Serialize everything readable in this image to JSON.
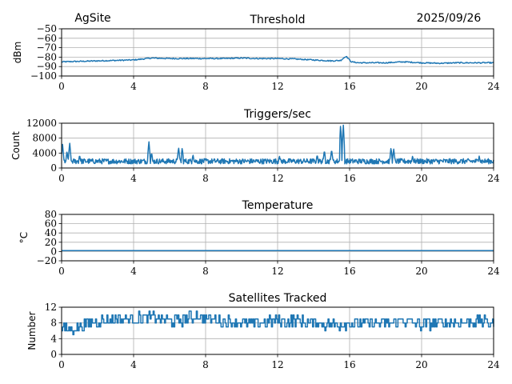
{
  "header": {
    "site": "AgSite",
    "date": "2025/09/26"
  },
  "colors": {
    "series": "#1f77b4",
    "grid": "#b0b0b0"
  },
  "chart_data": [
    {
      "type": "line",
      "title": "Threshold",
      "ylabel": "dBm",
      "xlim": [
        0,
        24
      ],
      "ylim": [
        -100,
        -50
      ],
      "xticks": [
        0,
        4,
        8,
        12,
        16,
        20,
        24
      ],
      "xtick_labels": [
        "0",
        "4",
        "8",
        "12",
        "16",
        "20",
        "24"
      ],
      "yticks": [
        -100,
        -90,
        -80,
        -70,
        -60,
        -50
      ],
      "ytick_labels": [
        "−100",
        "−90",
        "−80",
        "−70",
        "−60",
        "−50"
      ],
      "x": [
        0,
        1,
        2,
        3,
        4,
        4.5,
        5,
        6,
        7,
        8,
        9,
        10,
        11,
        12,
        13,
        14,
        15,
        15.5,
        15.8,
        16.1,
        16.5,
        17,
        18,
        19,
        20,
        21,
        22,
        23,
        24
      ],
      "y": [
        -85,
        -84.5,
        -84,
        -83.5,
        -83,
        -82,
        -81,
        -81.5,
        -81.5,
        -81.5,
        -81.5,
        -81,
        -81.5,
        -81.5,
        -82,
        -83,
        -84,
        -83.5,
        -79,
        -85,
        -86,
        -86,
        -86,
        -85,
        -86,
        -86.5,
        -86,
        -86,
        -86
      ],
      "noise": 0.6
    },
    {
      "type": "line",
      "title": "Triggers/sec",
      "ylabel": "Count",
      "xlim": [
        0,
        24
      ],
      "ylim": [
        0,
        12000
      ],
      "xticks": [
        0,
        4,
        8,
        12,
        16,
        20,
        24
      ],
      "xtick_labels": [
        "0",
        "4",
        "8",
        "12",
        "16",
        "20",
        "24"
      ],
      "yticks": [
        0,
        4000,
        8000,
        12000
      ],
      "ytick_labels": [
        "0",
        "4000",
        "8000",
        "12000"
      ],
      "baseline": 1800,
      "noise": 700,
      "spikes": [
        {
          "x": 0.05,
          "y": 6500
        },
        {
          "x": 0.3,
          "y": 4500
        },
        {
          "x": 0.45,
          "y": 6800
        },
        {
          "x": 1.0,
          "y": 3500
        },
        {
          "x": 4.85,
          "y": 7200
        },
        {
          "x": 5.0,
          "y": 4200
        },
        {
          "x": 6.5,
          "y": 5600
        },
        {
          "x": 6.7,
          "y": 5500
        },
        {
          "x": 7.3,
          "y": 3600
        },
        {
          "x": 12.1,
          "y": 3300
        },
        {
          "x": 14.2,
          "y": 3600
        },
        {
          "x": 14.6,
          "y": 4800
        },
        {
          "x": 15.0,
          "y": 5000
        },
        {
          "x": 15.5,
          "y": 11800
        },
        {
          "x": 15.65,
          "y": 11800
        },
        {
          "x": 18.3,
          "y": 5500
        },
        {
          "x": 18.45,
          "y": 5200
        },
        {
          "x": 19.5,
          "y": 3300
        },
        {
          "x": 23.2,
          "y": 3200
        }
      ]
    },
    {
      "type": "line",
      "title": "Temperature",
      "ylabel": "°C",
      "xlim": [
        0,
        24
      ],
      "ylim": [
        -20,
        80
      ],
      "xticks": [
        0,
        4,
        8,
        12,
        16,
        20,
        24
      ],
      "xtick_labels": [
        "0",
        "4",
        "8",
        "12",
        "16",
        "20",
        "24"
      ],
      "yticks": [
        -20,
        0,
        20,
        40,
        60,
        80
      ],
      "ytick_labels": [
        "−20",
        "0",
        "20",
        "40",
        "60",
        "80"
      ],
      "x": [
        0,
        24
      ],
      "y": [
        2,
        2
      ]
    },
    {
      "type": "line",
      "title": "Satellites Tracked",
      "ylabel": "Number",
      "xlim": [
        0,
        24
      ],
      "ylim": [
        0,
        12
      ],
      "xticks": [
        0,
        4,
        8,
        12,
        16,
        20,
        24
      ],
      "xtick_labels": [
        "0",
        "4",
        "8",
        "12",
        "16",
        "20",
        "24"
      ],
      "yticks": [
        0,
        4,
        8,
        12
      ],
      "ytick_labels": [
        "0",
        "4",
        "8",
        "12"
      ],
      "x": [
        0,
        0.5,
        1,
        1.5,
        2,
        3,
        4,
        5,
        6,
        7,
        7.5,
        8,
        9,
        10,
        11,
        12,
        13,
        14,
        15,
        16,
        17,
        18,
        19,
        20,
        21,
        22,
        23,
        24
      ],
      "y": [
        7,
        6.5,
        7,
        8,
        8.5,
        9,
        9,
        9.5,
        8.5,
        9,
        10,
        9,
        8.5,
        8,
        8,
        8.5,
        8.5,
        8,
        7.5,
        8,
        8,
        8,
        8.5,
        7.5,
        8,
        8,
        8.5,
        8
      ],
      "noise": 1.5,
      "step": true
    }
  ]
}
